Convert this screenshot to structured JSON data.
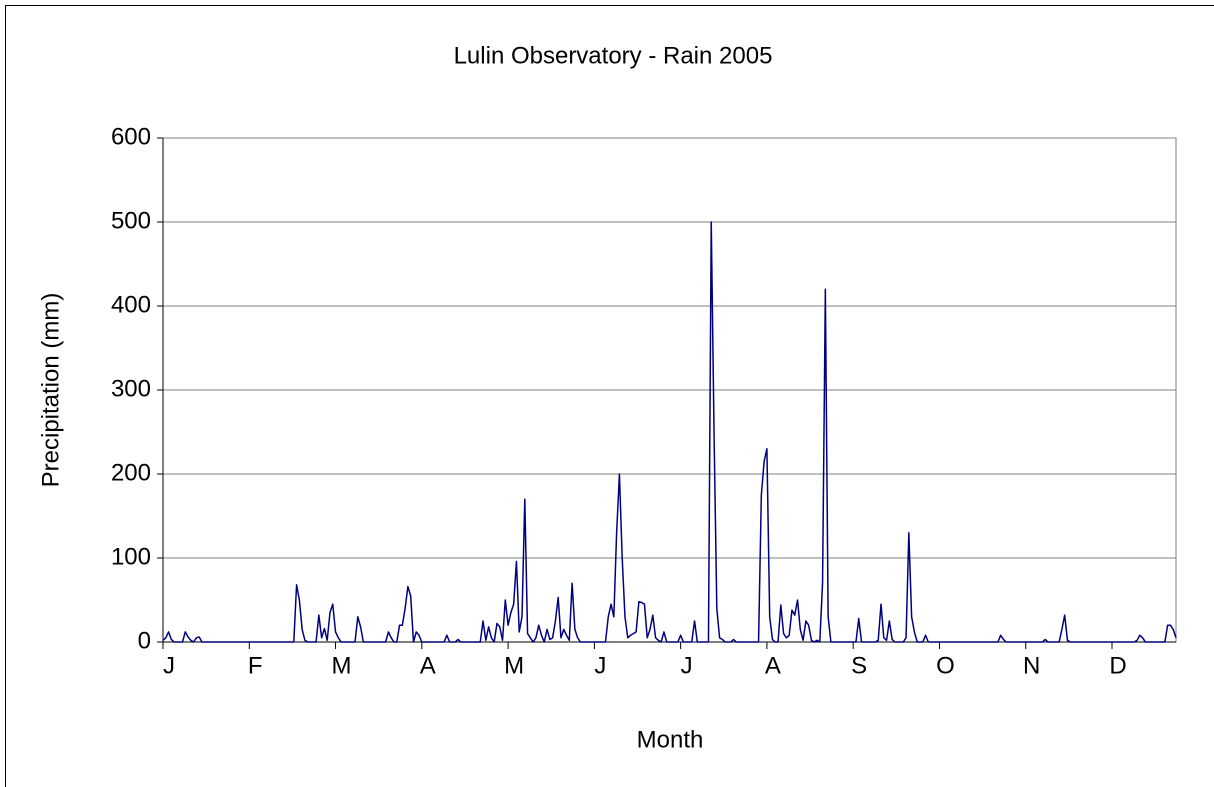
{
  "chart_data": {
    "type": "line",
    "title": "Lulin Observatory - Rain 2005",
    "x_label": "Month",
    "y_label": "Precipitation (mm)",
    "categories": [
      "J",
      null,
      null,
      null,
      null,
      null,
      null,
      null,
      null,
      null,
      null,
      null,
      null,
      null,
      null,
      null,
      null,
      null,
      null,
      null,
      null,
      null,
      null,
      null,
      null,
      null,
      null,
      null,
      null,
      null,
      null,
      "F",
      null,
      null,
      null,
      null,
      null,
      null,
      null,
      null,
      null,
      null,
      null,
      null,
      null,
      null,
      null,
      null,
      null,
      null,
      null,
      null,
      null,
      null,
      null,
      null,
      null,
      null,
      null,
      null,
      null,
      null,
      "M",
      null,
      null,
      null,
      null,
      null,
      null,
      null,
      null,
      null,
      null,
      null,
      null,
      null,
      null,
      null,
      null,
      null,
      null,
      null,
      null,
      null,
      null,
      null,
      null,
      null,
      null,
      null,
      null,
      null,
      null,
      "A",
      null,
      null,
      null,
      null,
      null,
      null,
      null,
      null,
      null,
      null,
      null,
      null,
      null,
      null,
      null,
      null,
      null,
      null,
      null,
      null,
      null,
      null,
      null,
      null,
      null,
      null,
      null,
      null,
      null,
      null,
      "M",
      null,
      null,
      null,
      null,
      null,
      null,
      null,
      null,
      null,
      null,
      null,
      null,
      null,
      null,
      null,
      null,
      null,
      null,
      null,
      null,
      null,
      null,
      null,
      null,
      null,
      null,
      null,
      null,
      null,
      null,
      "J",
      null,
      null,
      null,
      null,
      null,
      null,
      null,
      null,
      null,
      null,
      null,
      null,
      null,
      null,
      null,
      null,
      null,
      null,
      null,
      null,
      null,
      null,
      null,
      null,
      null,
      null,
      null,
      null,
      null,
      null,
      "J",
      null,
      null,
      null,
      null,
      null,
      null,
      null,
      null,
      null,
      null,
      null,
      null,
      null,
      null,
      null,
      null,
      null,
      null,
      null,
      null,
      null,
      null,
      null,
      null,
      null,
      null,
      null,
      null,
      null,
      null,
      "A",
      null,
      null,
      null,
      null,
      null,
      null,
      null,
      null,
      null,
      null,
      null,
      null,
      null,
      null,
      null,
      null,
      null,
      null,
      null,
      null,
      null,
      null,
      null,
      null,
      null,
      null,
      null,
      null,
      null,
      null,
      "S",
      null,
      null,
      null,
      null,
      null,
      null,
      null,
      null,
      null,
      null,
      null,
      null,
      null,
      null,
      null,
      null,
      null,
      null,
      null,
      null,
      null,
      null,
      null,
      null,
      null,
      null,
      null,
      null,
      null,
      null,
      "O",
      null,
      null,
      null,
      null,
      null,
      null,
      null,
      null,
      null,
      null,
      null,
      null,
      null,
      null,
      null,
      null,
      null,
      null,
      null,
      null,
      null,
      null,
      null,
      null,
      null,
      null,
      null,
      null,
      null,
      null,
      "N",
      null,
      null,
      null,
      null,
      null,
      null,
      null,
      null,
      null,
      null,
      null,
      null,
      null,
      null,
      null,
      null,
      null,
      null,
      null,
      null,
      null,
      null,
      null,
      null,
      null,
      null,
      null,
      null,
      null,
      null,
      "D",
      null,
      null,
      null,
      null,
      null,
      null,
      null,
      null,
      null,
      null,
      null,
      null,
      null,
      null,
      null,
      null,
      null,
      null,
      null,
      null,
      null,
      null,
      null
    ],
    "values": [
      2,
      5,
      12,
      3,
      0,
      0,
      0,
      0,
      12,
      6,
      2,
      0,
      5,
      6,
      0,
      0,
      0,
      0,
      0,
      0,
      0,
      0,
      0,
      0,
      0,
      0,
      0,
      0,
      0,
      0,
      0,
      0,
      0,
      0,
      0,
      0,
      0,
      0,
      0,
      0,
      0,
      0,
      0,
      0,
      0,
      0,
      0,
      0,
      68,
      50,
      15,
      2,
      0,
      0,
      0,
      0,
      32,
      5,
      16,
      2,
      35,
      45,
      12,
      5,
      0,
      0,
      0,
      0,
      0,
      0,
      30,
      18,
      0,
      0,
      0,
      0,
      0,
      0,
      0,
      0,
      0,
      12,
      5,
      0,
      0,
      20,
      20,
      40,
      66,
      55,
      0,
      12,
      8,
      0,
      0,
      0,
      0,
      0,
      0,
      0,
      0,
      0,
      8,
      0,
      0,
      0,
      3,
      0,
      0,
      0,
      0,
      0,
      0,
      0,
      0,
      25,
      2,
      18,
      5,
      0,
      22,
      18,
      2,
      50,
      20,
      35,
      45,
      96,
      12,
      30,
      170,
      10,
      5,
      0,
      5,
      20,
      8,
      0,
      15,
      3,
      5,
      25,
      53,
      5,
      15,
      8,
      2,
      70,
      15,
      5,
      0,
      0,
      0,
      0,
      0,
      0,
      0,
      0,
      0,
      0,
      30,
      45,
      30,
      130,
      200,
      100,
      30,
      5,
      8,
      10,
      12,
      48,
      47,
      45,
      5,
      15,
      32,
      5,
      2,
      0,
      12,
      0,
      0,
      0,
      0,
      0,
      8,
      0,
      0,
      0,
      0,
      25,
      0,
      0,
      0,
      0,
      0,
      500,
      250,
      40,
      5,
      3,
      0,
      0,
      0,
      3,
      0,
      0,
      0,
      0,
      0,
      0,
      0,
      0,
      0,
      175,
      215,
      230,
      30,
      3,
      0,
      0,
      44,
      10,
      5,
      8,
      38,
      32,
      50,
      15,
      2,
      25,
      20,
      2,
      0,
      2,
      0,
      70,
      420,
      30,
      0,
      0,
      0,
      0,
      0,
      0,
      0,
      0,
      0,
      0,
      28,
      0,
      0,
      0,
      0,
      0,
      0,
      2,
      45,
      5,
      2,
      25,
      3,
      0,
      0,
      0,
      0,
      5,
      130,
      30,
      12,
      0,
      0,
      0,
      8,
      0,
      0,
      0,
      0,
      0,
      0,
      0,
      0,
      0,
      0,
      0,
      0,
      0,
      0,
      0,
      0,
      0,
      0,
      0,
      0,
      0,
      0,
      0,
      0,
      0,
      0,
      8,
      3,
      0,
      0,
      0,
      0,
      0,
      0,
      0,
      0,
      0,
      0,
      0,
      0,
      0,
      0,
      3,
      0,
      0,
      0,
      0,
      0,
      15,
      32,
      2,
      0,
      0,
      0,
      0,
      0,
      0,
      0,
      0,
      0,
      0,
      0,
      0,
      0,
      0,
      0,
      0,
      0,
      0,
      0,
      0,
      0,
      0,
      0,
      0,
      2,
      8,
      5,
      0,
      0,
      0,
      0,
      0,
      0,
      0,
      0,
      20,
      20,
      15,
      5
    ],
    "color": "#000080",
    "ylim": [
      0,
      600
    ],
    "yticks": [
      0,
      100,
      200,
      300,
      400,
      500,
      600
    ],
    "grid": true
  }
}
